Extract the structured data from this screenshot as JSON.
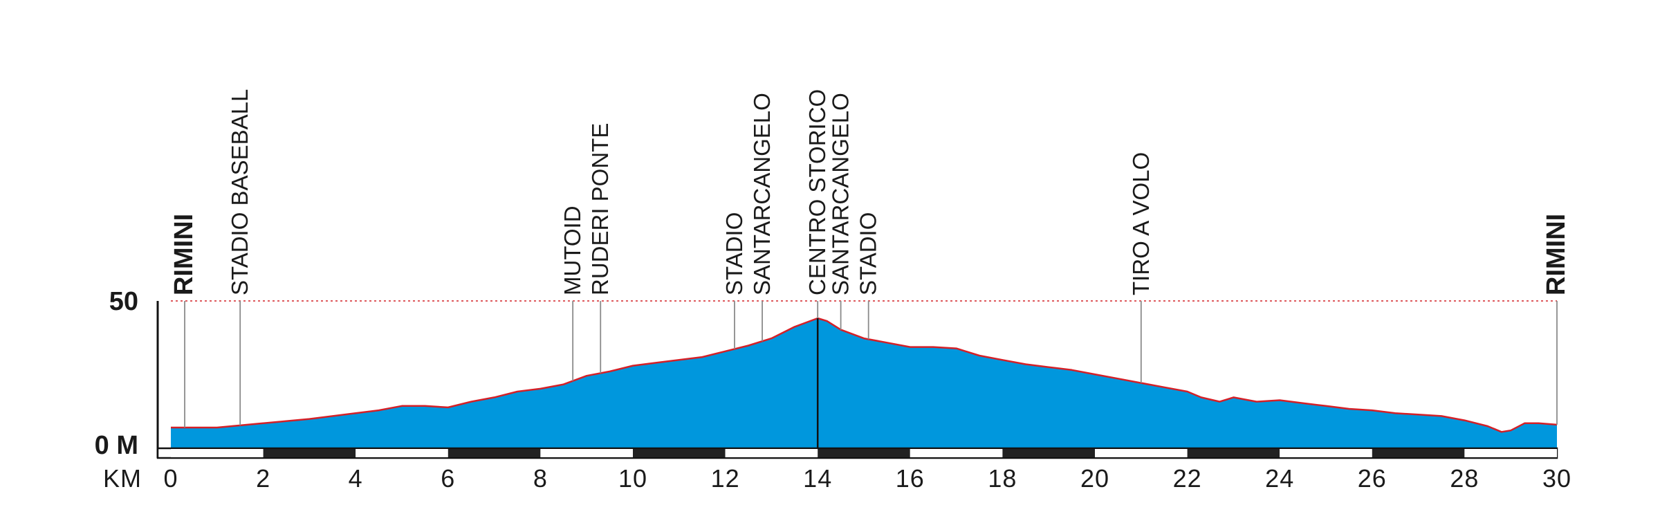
{
  "chart_data": {
    "type": "area",
    "title": "",
    "xlabel": "KM",
    "ylabel": "",
    "x_unit": "KM",
    "xlim": [
      0,
      30
    ],
    "ylim": [
      0,
      50
    ],
    "x_ticks": [
      0,
      2,
      4,
      6,
      8,
      10,
      12,
      14,
      16,
      18,
      20,
      22,
      24,
      26,
      28,
      30
    ],
    "y_ticks": [
      {
        "value": 0,
        "label": "0 M"
      },
      {
        "value": 50,
        "label": "50"
      }
    ],
    "fill_color": "#0097dd",
    "line_color": "#d42027",
    "reference_line": {
      "value": 50,
      "style": "dotted",
      "color": "#d42027"
    },
    "highlight_km": 14,
    "series": [
      {
        "x": [
          0,
          1,
          2,
          3,
          4,
          4.5,
          5,
          5.5,
          6,
          6.5,
          7,
          7.5,
          8,
          8.5,
          9,
          9.5,
          10,
          10.5,
          11,
          11.5,
          12,
          12.5,
          13,
          13.5,
          14,
          14.2,
          14.5,
          15,
          15.5,
          16,
          16.5,
          17,
          17.5,
          18,
          18.5,
          19,
          19.5,
          20,
          20.5,
          21,
          21.5,
          22,
          22.3,
          22.7,
          23,
          23.5,
          24,
          24.5,
          25,
          25.5,
          26,
          26.5,
          27,
          27.5,
          28,
          28.5,
          28.8,
          29,
          29.3,
          29.6,
          30
        ],
        "y": [
          6,
          6,
          7.5,
          9,
          11,
          12,
          13.5,
          13.5,
          13,
          15,
          16.5,
          18.5,
          19.5,
          21,
          24,
          25.5,
          27.5,
          28.5,
          29.5,
          30.5,
          32.5,
          34.5,
          37,
          41,
          44,
          43,
          40,
          37,
          35.5,
          34,
          34,
          33.5,
          31,
          29.5,
          28,
          27,
          26,
          24.5,
          23,
          21.5,
          20,
          18.5,
          16.5,
          15,
          16.5,
          15,
          15.5,
          14.5,
          13.5,
          12.5,
          12,
          11,
          10.5,
          10,
          8.5,
          6.5,
          4.5,
          5,
          7.5,
          7.5,
          7
        ]
      }
    ],
    "locations": [
      {
        "km": 0.3,
        "label": "RIMINI",
        "bold": true,
        "line_top": 50
      },
      {
        "km": 1.5,
        "label": "STADIO BASEBALL",
        "line_top": 50
      },
      {
        "km": 8.7,
        "label": "MUTOID",
        "line_top": 50
      },
      {
        "km": 9.3,
        "label": "RUDERI PONTE",
        "line_top": 50
      },
      {
        "km": 12.2,
        "label": "STADIO",
        "line_top": 50
      },
      {
        "km": 12.8,
        "label": "SANTARCANGELO",
        "line_top": 50
      },
      {
        "km": 14,
        "label": "CENTRO STORICO",
        "line_top": 50
      },
      {
        "km": 14.5,
        "label": "SANTARCANGELO",
        "line_top": 50
      },
      {
        "km": 15.1,
        "label": "STADIO",
        "line_top": 50
      },
      {
        "km": 21,
        "label": "TIRO A VOLO",
        "line_top": 50
      },
      {
        "km": 30,
        "label": "RIMINI",
        "bold": true,
        "line_top": 50
      }
    ]
  }
}
